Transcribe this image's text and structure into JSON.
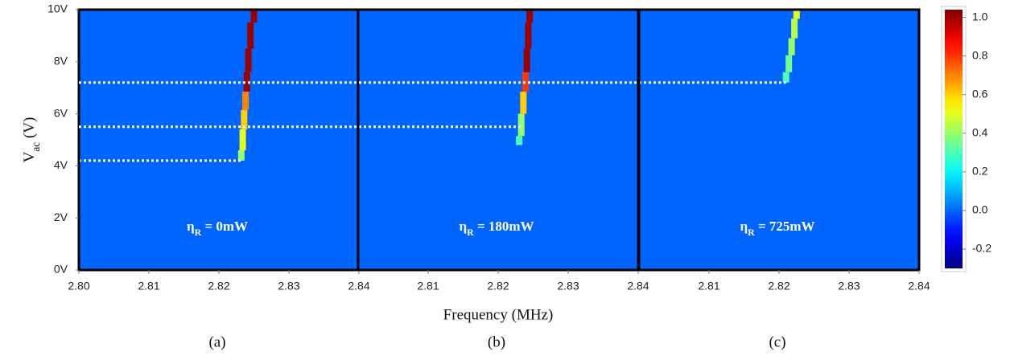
{
  "chart_data": [
    {
      "type": "heatmap",
      "panel_label": "(a)",
      "ylabel": {
        "main": "V",
        "sub": "ac",
        "rest": " (V)"
      },
      "annotation": {
        "main": "η",
        "sub": "R",
        "rest": " = 0mW"
      },
      "xlim": [
        2.8,
        2.84
      ],
      "xticks": [
        {
          "value": 2.8,
          "label": "2.80"
        },
        {
          "value": 2.81,
          "label": "2.81"
        },
        {
          "value": 2.82,
          "label": "2.82"
        },
        {
          "value": 2.83,
          "label": "2.83"
        },
        {
          "value": 2.84,
          "label": "2.84"
        }
      ],
      "ylim": [
        0,
        10
      ],
      "yticks": [
        {
          "value": 0,
          "label": "0V"
        },
        {
          "value": 2,
          "label": "2V"
        },
        {
          "value": 4,
          "label": "4V"
        },
        {
          "value": 6,
          "label": "6V"
        },
        {
          "value": 8,
          "label": "8V"
        },
        {
          "value": 10,
          "label": "10V"
        }
      ],
      "background": 0.0,
      "threshold": 4.2,
      "trace": {
        "x": [
          2.8232,
          2.8234,
          2.8236,
          2.8238,
          2.824,
          2.8242,
          2.8245,
          2.825
        ],
        "y": [
          4.2,
          5.0,
          5.8,
          6.5,
          7.2,
          8.0,
          9.0,
          10
        ],
        "z": [
          0.4,
          0.5,
          0.6,
          0.7,
          1.0,
          1.0,
          1.0,
          1.0
        ]
      }
    },
    {
      "type": "heatmap",
      "panel_label": "(b)",
      "xlabel": "Frequency (MHz)",
      "annotation": {
        "main": "η",
        "sub": "R",
        "rest": " = 180mW"
      },
      "xlim": [
        2.8,
        2.84
      ],
      "xticks": [
        {
          "value": 2.81,
          "label": "2.81"
        },
        {
          "value": 2.82,
          "label": "2.82"
        },
        {
          "value": 2.83,
          "label": "2.83"
        },
        {
          "value": 2.84,
          "label": "2.84"
        }
      ],
      "ylim": [
        0,
        10
      ],
      "background": 0.0,
      "threshold": 5.5,
      "trace": {
        "x": [
          2.823,
          2.8233,
          2.8236,
          2.8239,
          2.8241,
          2.8243,
          2.8245
        ],
        "y": [
          4.8,
          5.5,
          6.5,
          7.2,
          8.0,
          9.0,
          10
        ],
        "z": [
          0.3,
          0.4,
          0.6,
          0.8,
          1.0,
          1.0,
          1.0
        ]
      }
    },
    {
      "type": "heatmap",
      "panel_label": "(c)",
      "annotation": {
        "main": "η",
        "sub": "R",
        "rest": " = 725mW"
      },
      "xlim": [
        2.8,
        2.84
      ],
      "xticks": [
        {
          "value": 2.81,
          "label": "2.81"
        },
        {
          "value": 2.82,
          "label": "2.82"
        },
        {
          "value": 2.83,
          "label": "2.83"
        },
        {
          "value": 2.84,
          "label": "2.84"
        }
      ],
      "ylim": [
        0,
        10
      ],
      "background": 0.0,
      "threshold": 7.2,
      "trace": {
        "x": [
          2.821,
          2.8214,
          2.8218,
          2.8222,
          2.8225
        ],
        "y": [
          7.2,
          8.0,
          8.5,
          9.3,
          10
        ],
        "z": [
          0.3,
          0.35,
          0.4,
          0.45,
          0.5
        ]
      }
    }
  ],
  "colorbar": {
    "zlim": [
      -0.3,
      1.04
    ],
    "zticks": [
      {
        "value": 1.0,
        "label": "1.0"
      },
      0.8,
      0.6,
      0.4,
      0.2,
      {
        "value": 0.0,
        "label": "0.0"
      },
      -0.2
    ]
  }
}
